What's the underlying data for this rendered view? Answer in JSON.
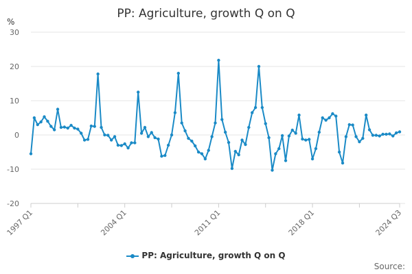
{
  "chart_data": {
    "type": "line",
    "title": "PP: Agriculture, growth Q on Q",
    "ylabel": "%",
    "ylim": [
      -20,
      30
    ],
    "yticks": [
      "30",
      "20",
      "10",
      "0",
      "-10",
      "-20"
    ],
    "xtick_labels": [
      "1997 Q1",
      "2004 Q1",
      "2011 Q1",
      "2018 Q1",
      "2024 Q3"
    ],
    "legend_position": "bottom-center",
    "grid": true,
    "color": "#1a8ac6",
    "series": [
      {
        "name": "PP: Agriculture, growth Q on Q",
        "values": [
          -5.5,
          5,
          3,
          3.8,
          5.3,
          4,
          2.5,
          1.5,
          7.5,
          2.2,
          2.3,
          2,
          2.8,
          2,
          1.7,
          0.5,
          -1.5,
          -1.3,
          2.6,
          2.5,
          17.8,
          2.2,
          0,
          -0.1,
          -1.5,
          -0.5,
          -3,
          -3.1,
          -2.6,
          -3.8,
          -2.3,
          -2.3,
          12.5,
          0.5,
          2.2,
          -0.5,
          0.7,
          -0.8,
          -1.2,
          -6.2,
          -6,
          -3,
          0,
          6.5,
          18,
          3.5,
          1.2,
          -1,
          -1.8,
          -3.2,
          -5,
          -5.5,
          -7,
          -4.5,
          -0.5,
          3.5,
          21.8,
          4.5,
          0.8,
          -2.2,
          -9.8,
          -4.8,
          -5.8,
          -1.5,
          -2.8,
          2.2,
          6.5,
          8,
          20,
          8,
          3.3,
          -0.8,
          -10.3,
          -5.5,
          -4,
          -0.2,
          -7.5,
          -0.3,
          1.4,
          0.5,
          5.8,
          -1.2,
          -1.5,
          -1.3,
          -7,
          -4,
          0.8,
          5,
          4.3,
          5,
          6.2,
          5.5,
          -5,
          -8.2,
          -0.5,
          3,
          2.9,
          -0.5,
          -2,
          -1,
          5.8,
          1.5,
          -0.1,
          -0.1,
          -0.3,
          0.2,
          0.2,
          0.3,
          -0.3,
          0.6,
          0.9
        ]
      }
    ]
  },
  "legend": {
    "label": "PP: Agriculture, growth Q on Q"
  },
  "footer": {
    "source_label": "Source:"
  }
}
